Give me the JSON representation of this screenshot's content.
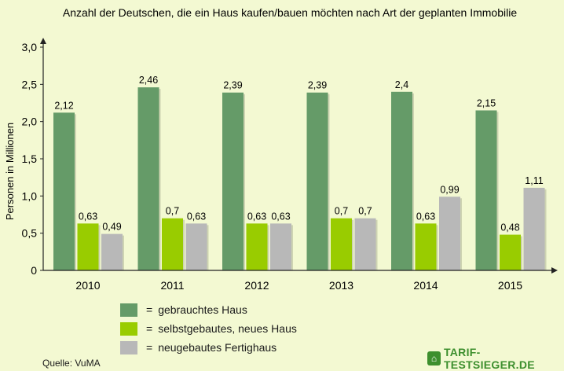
{
  "chart_data": {
    "type": "bar",
    "title": "Anzahl der Deutschen, die ein Haus kaufen/bauen möchten nach Art der geplanten Immobilie",
    "ylabel": "Personen in Millionen",
    "xlabel": "",
    "ylim": [
      0,
      3.0
    ],
    "yticks": [
      "0",
      "0,5",
      "1,0",
      "1,5",
      "2,0",
      "2,5",
      "3,0"
    ],
    "categories": [
      "2010",
      "2011",
      "2012",
      "2013",
      "2014",
      "2015"
    ],
    "series": [
      {
        "name": "gebrauchtes Haus",
        "color": "#659b68",
        "values": [
          2.12,
          2.46,
          2.39,
          2.39,
          2.4,
          2.15
        ],
        "labels": [
          "2,12",
          "2,46",
          "2,39",
          "2,39",
          "2,4",
          "2,15"
        ]
      },
      {
        "name": "selbstgebautes, neues Haus",
        "color": "#99cc00",
        "values": [
          0.63,
          0.7,
          0.63,
          0.7,
          0.63,
          0.48
        ],
        "labels": [
          "0,63",
          "0,7",
          "0,63",
          "0,7",
          "0,63",
          "0,48"
        ]
      },
      {
        "name": "neugebautes Fertighaus",
        "color": "#b8b8b8",
        "values": [
          0.49,
          0.63,
          0.63,
          0.7,
          0.99,
          1.11
        ],
        "labels": [
          "0,49",
          "0,63",
          "0,63",
          "0,7",
          "0,99",
          "1,11"
        ]
      }
    ],
    "grid": false,
    "legend": "bottom"
  },
  "legend": {
    "eq": "=",
    "items": [
      {
        "label": "gebrauchtes Haus",
        "color": "#659b68"
      },
      {
        "label": "selbstgebautes, neues Haus",
        "color": "#99cc00"
      },
      {
        "label": "neugebautes Fertighaus",
        "color": "#b8b8b8"
      }
    ]
  },
  "source": "Quelle: VuMA",
  "brand": {
    "icon": "house-icon",
    "icon_glyph": "⌂",
    "name": "TARIF-TESTSIEGER.DE"
  }
}
